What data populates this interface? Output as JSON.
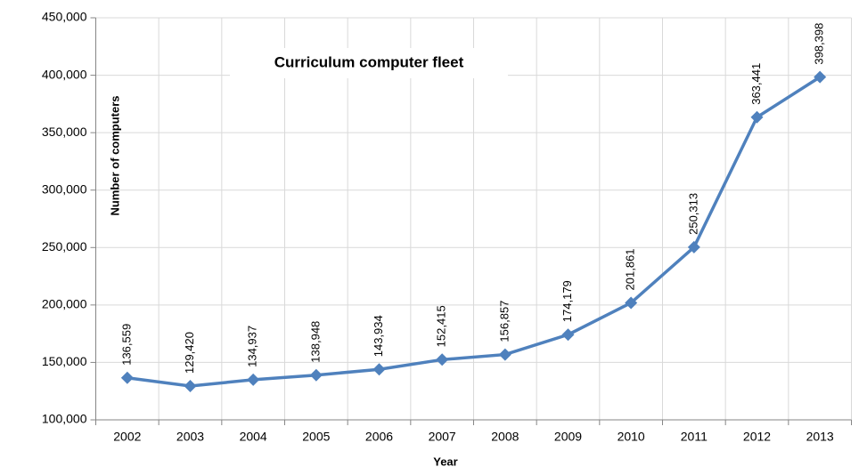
{
  "chart_data": {
    "type": "line",
    "title": "Curriculum computer  fleet",
    "xlabel": "Year",
    "ylabel": "Number of computers",
    "categories": [
      "2002",
      "2003",
      "2004",
      "2005",
      "2006",
      "2007",
      "2008",
      "2009",
      "2010",
      "2011",
      "2012",
      "2013"
    ],
    "series": [
      {
        "name": "Number of computers",
        "color": "#4f81bd",
        "values": [
          136559,
          129420,
          134937,
          138948,
          143934,
          152415,
          156857,
          174179,
          201861,
          250313,
          363441,
          398398
        ],
        "value_labels": [
          "136,559",
          "129,420",
          "134,937",
          "138,948",
          "143,934",
          "152,415",
          "156,857",
          "174,179",
          "201,861",
          "250,313",
          "363,441",
          "398,398"
        ]
      }
    ],
    "ylim": [
      100000,
      450000
    ],
    "yticks": [
      {
        "value": 100000,
        "label": "100,000"
      },
      {
        "value": 150000,
        "label": "150,000"
      },
      {
        "value": 200000,
        "label": "200,000"
      },
      {
        "value": 250000,
        "label": "250,000"
      },
      {
        "value": 300000,
        "label": "300,000"
      },
      {
        "value": 350000,
        "label": "350,000"
      },
      {
        "value": 400000,
        "label": "400,000"
      },
      {
        "value": 450000,
        "label": "450,000"
      }
    ],
    "grid": true
  }
}
